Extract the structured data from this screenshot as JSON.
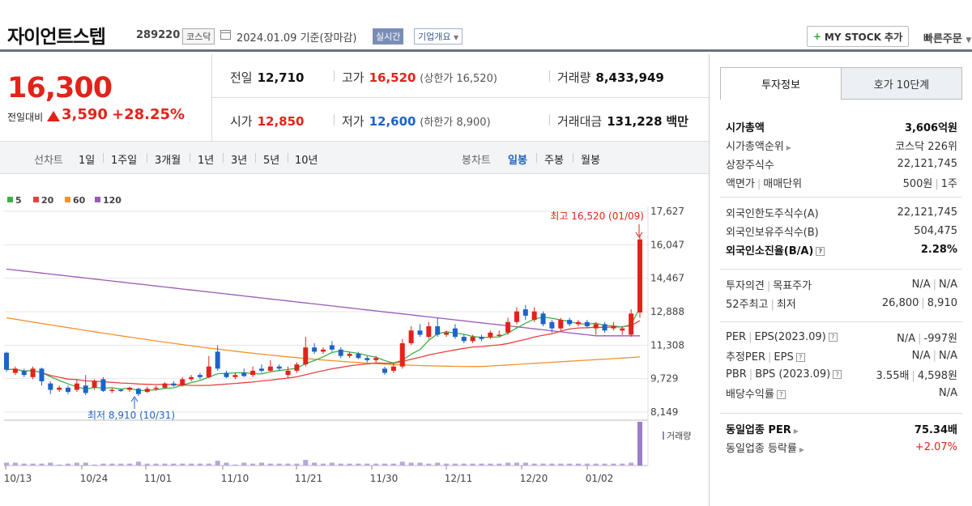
{
  "header": {
    "name": "자이언트스텝",
    "code": "289220",
    "market": "코스닥",
    "date_text": "2024.01.09 기준(장마감)",
    "realtime": "실시간",
    "corp_overview": "기업개요",
    "my_stock": "MY STOCK 추가",
    "quick_order": "빠른주문"
  },
  "price": {
    "current": "16,300",
    "change_label": "전일대비",
    "change_value": "3,590",
    "change_pct": "+28.25%"
  },
  "quote": {
    "prev_label": "전일",
    "prev": "12,710",
    "high_label": "고가",
    "high": "16,520",
    "upper_limit": "(상한가 16,520)",
    "volume_label": "거래량",
    "volume": "8,433,949",
    "open_label": "시가",
    "open": "12,850",
    "low_label": "저가",
    "low": "12,600",
    "lower_limit": "(하한가 8,900)",
    "amount_label": "거래대금",
    "amount": "131,228",
    "amount_unit": "백만"
  },
  "periods": {
    "line_label": "선차트",
    "line_items": [
      "1일",
      "1주일",
      "3개월",
      "1년",
      "3년",
      "5년",
      "10년"
    ],
    "candle_label": "봉차트",
    "candle_items": [
      "일봉",
      "주봉",
      "월봉"
    ],
    "active_candle": "일봉"
  },
  "chart_data": {
    "type": "candlestick",
    "legend": [
      {
        "name": "5",
        "color": "#3cb043"
      },
      {
        "name": "20",
        "color": "#e84040"
      },
      {
        "name": "60",
        "color": "#f0932b"
      },
      {
        "name": "120",
        "color": "#9b59b6"
      }
    ],
    "y_ticks": [
      "17,627",
      "16,047",
      "14,467",
      "12,888",
      "11,308",
      "9,729",
      "8,149"
    ],
    "ylim": [
      8149,
      17627
    ],
    "x_ticks": [
      "10/13",
      "10/24",
      "11/01",
      "11/10",
      "11/21",
      "11/30",
      "12/11",
      "12/20",
      "01/02"
    ],
    "high_annotation": "최고 16,520 (01/09)",
    "low_annotation": "최저 8,910 (10/31)",
    "volume_label": "거래량",
    "candles": [
      {
        "o": 10950,
        "c": 10150,
        "h": 11000,
        "l": 10050
      },
      {
        "o": 10000,
        "c": 10200,
        "h": 10300,
        "l": 9900
      },
      {
        "o": 10100,
        "c": 9900,
        "h": 10200,
        "l": 9800
      },
      {
        "o": 9800,
        "c": 10200,
        "h": 10300,
        "l": 9700
      },
      {
        "o": 10200,
        "c": 9600,
        "h": 10250,
        "l": 9400
      },
      {
        "o": 9500,
        "c": 9200,
        "h": 9600,
        "l": 9000
      },
      {
        "o": 9200,
        "c": 9300,
        "h": 9400,
        "l": 9100
      },
      {
        "o": 9300,
        "c": 9100,
        "h": 9400,
        "l": 9000
      },
      {
        "o": 9200,
        "c": 9500,
        "h": 9700,
        "l": 9100
      },
      {
        "o": 9400,
        "c": 9050,
        "h": 9900,
        "l": 8950
      },
      {
        "o": 9300,
        "c": 9600,
        "h": 9700,
        "l": 9200
      },
      {
        "o": 9700,
        "c": 9150,
        "h": 9800,
        "l": 9100
      },
      {
        "o": 9150,
        "c": 9200,
        "h": 9300,
        "l": 9050
      },
      {
        "o": 9200,
        "c": 9150,
        "h": 9250,
        "l": 9100
      },
      {
        "o": 9200,
        "c": 9300,
        "h": 9350,
        "l": 9100
      },
      {
        "o": 9250,
        "c": 9000,
        "h": 9300,
        "l": 8910
      },
      {
        "o": 9100,
        "c": 9250,
        "h": 9350,
        "l": 9050
      },
      {
        "o": 9250,
        "c": 9300,
        "h": 9400,
        "l": 9150
      },
      {
        "o": 9300,
        "c": 9500,
        "h": 9550,
        "l": 9250
      },
      {
        "o": 9500,
        "c": 9400,
        "h": 9600,
        "l": 9350
      },
      {
        "o": 9400,
        "c": 9700,
        "h": 9800,
        "l": 9350
      },
      {
        "o": 9700,
        "c": 9800,
        "h": 9900,
        "l": 9600
      },
      {
        "o": 9900,
        "c": 9800,
        "h": 10000,
        "l": 9700
      },
      {
        "o": 9800,
        "c": 10300,
        "h": 10800,
        "l": 9750
      },
      {
        "o": 11000,
        "c": 10200,
        "h": 11300,
        "l": 10100
      },
      {
        "o": 10000,
        "c": 9800,
        "h": 10100,
        "l": 9750
      },
      {
        "o": 9800,
        "c": 9900,
        "h": 10000,
        "l": 9700
      },
      {
        "o": 10000,
        "c": 9850,
        "h": 10200,
        "l": 9800
      },
      {
        "o": 9900,
        "c": 10100,
        "h": 10300,
        "l": 9800
      },
      {
        "o": 10200,
        "c": 10100,
        "h": 10400,
        "l": 10000
      },
      {
        "o": 10100,
        "c": 10300,
        "h": 10600,
        "l": 10050
      },
      {
        "o": 10300,
        "c": 10200,
        "h": 10400,
        "l": 10100
      },
      {
        "o": 9900,
        "c": 10100,
        "h": 10300,
        "l": 9750
      },
      {
        "o": 10100,
        "c": 10400,
        "h": 10500,
        "l": 10000
      },
      {
        "o": 10400,
        "c": 11200,
        "h": 11700,
        "l": 10300
      },
      {
        "o": 11200,
        "c": 11000,
        "h": 11400,
        "l": 10900
      },
      {
        "o": 11000,
        "c": 11100,
        "h": 11200,
        "l": 10900
      },
      {
        "o": 11300,
        "c": 11100,
        "h": 11500,
        "l": 11000
      },
      {
        "o": 11100,
        "c": 10800,
        "h": 11200,
        "l": 10700
      },
      {
        "o": 10800,
        "c": 10900,
        "h": 11000,
        "l": 10700
      },
      {
        "o": 10900,
        "c": 10700,
        "h": 11000,
        "l": 10650
      },
      {
        "o": 10700,
        "c": 10600,
        "h": 10800,
        "l": 10500
      },
      {
        "o": 10600,
        "c": 10700,
        "h": 10800,
        "l": 10500
      },
      {
        "o": 10200,
        "c": 10000,
        "h": 10300,
        "l": 9900
      },
      {
        "o": 10100,
        "c": 10300,
        "h": 10500,
        "l": 10000
      },
      {
        "o": 10300,
        "c": 11400,
        "h": 11600,
        "l": 10200
      },
      {
        "o": 11400,
        "c": 12000,
        "h": 12200,
        "l": 11300
      },
      {
        "o": 12000,
        "c": 11800,
        "h": 12300,
        "l": 11700
      },
      {
        "o": 11700,
        "c": 12200,
        "h": 12400,
        "l": 11600
      },
      {
        "o": 12200,
        "c": 11800,
        "h": 12600,
        "l": 11700
      },
      {
        "o": 11800,
        "c": 11900,
        "h": 12000,
        "l": 11700
      },
      {
        "o": 12100,
        "c": 11700,
        "h": 12300,
        "l": 11600
      },
      {
        "o": 11700,
        "c": 11500,
        "h": 11800,
        "l": 11400
      },
      {
        "o": 11500,
        "c": 11700,
        "h": 11800,
        "l": 11400
      },
      {
        "o": 11700,
        "c": 11600,
        "h": 11800,
        "l": 11500
      },
      {
        "o": 11700,
        "c": 11900,
        "h": 12000,
        "l": 11600
      },
      {
        "o": 11800,
        "c": 11800,
        "h": 12000,
        "l": 11700
      },
      {
        "o": 11900,
        "c": 12400,
        "h": 12600,
        "l": 11800
      },
      {
        "o": 12400,
        "c": 12900,
        "h": 13100,
        "l": 12300
      },
      {
        "o": 13000,
        "c": 12700,
        "h": 13200,
        "l": 12500
      },
      {
        "o": 12500,
        "c": 12900,
        "h": 13100,
        "l": 12400
      },
      {
        "o": 12800,
        "c": 12300,
        "h": 12900,
        "l": 12200
      },
      {
        "o": 12400,
        "c": 12100,
        "h": 12500,
        "l": 11900
      },
      {
        "o": 12100,
        "c": 12500,
        "h": 12600,
        "l": 12000
      },
      {
        "o": 12500,
        "c": 12300,
        "h": 12600,
        "l": 12200
      },
      {
        "o": 12300,
        "c": 12400,
        "h": 12500,
        "l": 12200
      },
      {
        "o": 12400,
        "c": 12200,
        "h": 12500,
        "l": 12100
      },
      {
        "o": 12100,
        "c": 12300,
        "h": 12400,
        "l": 11800
      },
      {
        "o": 12300,
        "c": 12000,
        "h": 12400,
        "l": 11900
      },
      {
        "o": 12100,
        "c": 12200,
        "h": 12400,
        "l": 12000
      },
      {
        "o": 12000,
        "c": 12100,
        "h": 12200,
        "l": 11800
      },
      {
        "o": 11800,
        "c": 12800,
        "h": 13000,
        "l": 11700
      },
      {
        "o": 12850,
        "c": 16300,
        "h": 16520,
        "l": 12600
      }
    ],
    "volume": [
      3,
      3,
      2,
      2,
      2,
      3,
      1,
      2,
      3,
      3,
      1,
      2,
      2,
      2,
      2,
      4,
      2,
      2,
      2,
      2,
      2,
      2,
      2,
      2,
      5,
      3,
      1,
      3,
      2,
      3,
      2,
      2,
      2,
      2,
      6,
      3,
      2,
      3,
      2,
      2,
      2,
      2,
      2,
      2,
      2,
      4,
      3,
      3,
      2,
      3,
      2,
      2,
      2,
      2,
      2,
      2,
      2,
      3,
      3,
      3,
      2,
      2,
      2,
      2,
      2,
      2,
      2,
      2,
      2,
      2,
      2,
      3,
      46
    ]
  },
  "panel": {
    "tab_active": "투자정보",
    "tab_other": "호가 10단계",
    "s1": [
      {
        "k": "시가총액",
        "v": "3,606억원",
        "bold": true
      },
      {
        "k": "시가총액순위",
        "v": "코스닥 226위",
        "arrow": true
      },
      {
        "k": "상장주식수",
        "v": "22,121,745"
      },
      {
        "k1": "액면가",
        "k2": "매매단위",
        "v1": "500원",
        "v2": "1주"
      }
    ],
    "s2": [
      {
        "k": "외국인한도주식수(A)",
        "v": "22,121,745"
      },
      {
        "k": "외국인보유주식수(B)",
        "v": "504,475"
      },
      {
        "k": "외국인소진율(B/A)",
        "v": "2.28%",
        "bold": true,
        "help": true
      }
    ],
    "s3": [
      {
        "k1": "투자의견",
        "k2": "목표주가",
        "v1": "N/A",
        "v2": "N/A"
      },
      {
        "k1": "52주최고",
        "k2": "최저",
        "v1": "26,800",
        "v2": "8,910"
      }
    ],
    "s4": [
      {
        "k1": "PER",
        "k2": "EPS(2023.09)",
        "v1": "N/A",
        "v2": "-997원",
        "help": true
      },
      {
        "k1": "추정PER",
        "k2": "EPS",
        "v1": "N/A",
        "v2": "N/A",
        "help": true
      },
      {
        "k1": "PBR",
        "k2": "BPS (2023.09)",
        "v1": "3.55배",
        "v2": "4,598원",
        "help": true
      },
      {
        "k": "배당수익률",
        "v": "N/A",
        "help": true
      }
    ],
    "s5": [
      {
        "k": "동일업종 PER",
        "v": "75.34배",
        "bold": true,
        "arrow": true
      },
      {
        "k": "동일업종 등락률",
        "v": "+2.07%",
        "red": true,
        "arrow": true
      }
    ]
  }
}
